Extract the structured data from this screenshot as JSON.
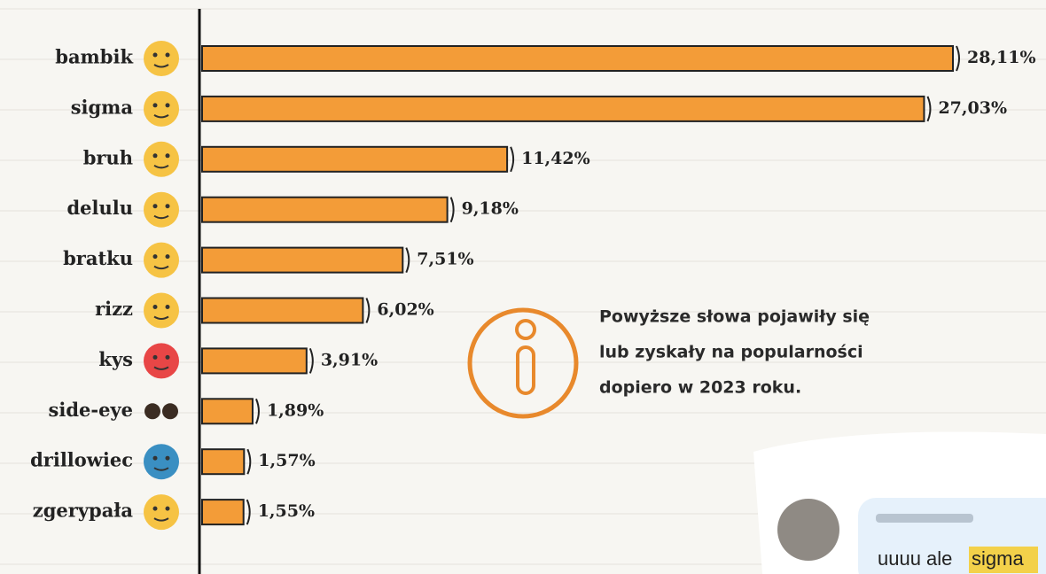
{
  "chart_data": {
    "type": "bar",
    "orientation": "horizontal",
    "categories": [
      "bambik",
      "sigma",
      "bruh",
      "delulu",
      "bratku",
      "rizz",
      "kys",
      "side-eye",
      "drillowiec",
      "zgerypała"
    ],
    "values": [
      28.11,
      27.03,
      11.42,
      9.18,
      7.51,
      6.02,
      3.91,
      1.89,
      1.57,
      1.55
    ],
    "value_labels": [
      "28,11%",
      "27,03%",
      "11,42%",
      "9,18%",
      "7,51%",
      "6,02%",
      "3,91%",
      "1,89%",
      "1,57%",
      "1,55%"
    ],
    "color": "#f39c38",
    "annotation": [
      "Powyższe słowa pojawiły się",
      "lub zyskały na popularności",
      "dopiero w 2023 roku."
    ]
  },
  "chat": {
    "message": "uuuu ale",
    "highlight": "sigma"
  }
}
